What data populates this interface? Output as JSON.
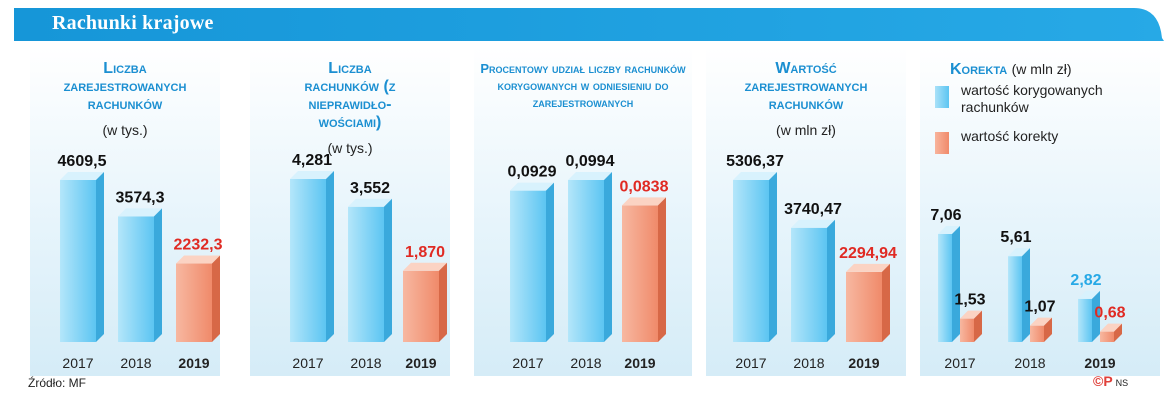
{
  "header": {
    "title": "Rachunki krajowe"
  },
  "source": "Źródło: MF",
  "credit": {
    "mark": "©P",
    "initials": "NS"
  },
  "colors": {
    "blue": "#5cc5f2",
    "orange": "#f08a6a",
    "highlight": "#e02a23",
    "accent": "#1b8fd1"
  },
  "legend": {
    "items": [
      {
        "label": "wartość korygowanych rachunków",
        "color": "#5cc5f2"
      },
      {
        "label": "wartość korekty",
        "color": "#f08a6a"
      }
    ]
  },
  "chart_data": [
    {
      "type": "bar",
      "title": "Liczba zarejestrowanych rachunków",
      "subtitle": "(w tys.)",
      "categories": [
        "2017",
        "2018",
        "2019"
      ],
      "values": [
        4609.5,
        3574.3,
        2232.3
      ],
      "labels": [
        "4609,5",
        "3574,3",
        "2232,3"
      ],
      "colors": [
        "blue",
        "blue",
        "orange"
      ]
    },
    {
      "type": "bar",
      "title": "Liczba rachunków (z nieprawidło-wościami)",
      "subtitle": "(w tys.)",
      "categories": [
        "2017",
        "2018",
        "2019"
      ],
      "values": [
        4281,
        3552,
        1870
      ],
      "labels": [
        "4,281",
        "3,552",
        "1,870"
      ],
      "colors": [
        "blue",
        "blue",
        "orange"
      ]
    },
    {
      "type": "bar",
      "title": "Procentowy udział liczby rachunków korygowanych w odniesieniu do zarejestrowanych",
      "subtitle": "",
      "categories": [
        "2017",
        "2018",
        "2019"
      ],
      "values": [
        0.0929,
        0.0994,
        0.0838
      ],
      "labels": [
        "0,0929",
        "0,0994",
        "0,0838"
      ],
      "colors": [
        "blue",
        "blue",
        "orange"
      ]
    },
    {
      "type": "bar",
      "title": "Wartość zarejestrowanych rachunków",
      "subtitle": "(w mln zł)",
      "categories": [
        "2017",
        "2018",
        "2019"
      ],
      "values": [
        5306.37,
        3740.47,
        2294.94
      ],
      "labels": [
        "5306,37",
        "3740,47",
        "2294,94"
      ],
      "colors": [
        "blue",
        "blue",
        "orange"
      ]
    },
    {
      "type": "bar",
      "title": "Korekta",
      "title_suffix": "(w mln zł)",
      "categories": [
        "2017",
        "2018",
        "2019"
      ],
      "series": [
        {
          "name": "wartość korygowanych rachunków",
          "values": [
            7.06,
            5.61,
            2.82
          ],
          "labels": [
            "7,06",
            "5,61",
            "2,82"
          ]
        },
        {
          "name": "wartość korekty",
          "values": [
            1.53,
            1.07,
            0.68
          ],
          "labels": [
            "1,53",
            "1,07",
            "0,68"
          ]
        }
      ]
    }
  ]
}
